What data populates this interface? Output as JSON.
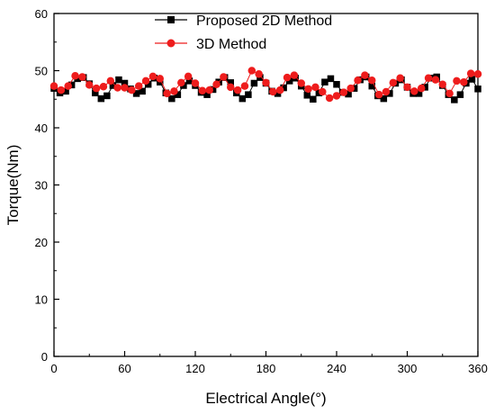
{
  "chart_data": {
    "type": "line",
    "title": "",
    "xlabel": "Electrical Angle(°)",
    "ylabel": "Torque(Nm)",
    "xlim": [
      0,
      360
    ],
    "ylim": [
      0,
      60
    ],
    "xticks": [
      "0",
      "60",
      "120",
      "180",
      "240",
      "300",
      "360"
    ],
    "yticks": [
      "0",
      "10",
      "20",
      "30",
      "40",
      "50",
      "60"
    ],
    "grid": false,
    "legend_position": "top-center",
    "series": [
      {
        "name": "Proposed 2D Method",
        "color": "#000000",
        "marker": "square",
        "x": [
          0,
          5,
          10,
          15,
          20,
          25,
          30,
          35,
          40,
          45,
          50,
          55,
          60,
          65,
          70,
          75,
          80,
          85,
          90,
          95,
          100,
          105,
          110,
          115,
          120,
          125,
          130,
          135,
          140,
          145,
          150,
          155,
          160,
          165,
          170,
          175,
          180,
          185,
          190,
          195,
          200,
          205,
          210,
          215,
          220,
          225,
          230,
          235,
          240,
          245,
          250,
          255,
          260,
          265,
          270,
          275,
          280,
          285,
          290,
          295,
          300,
          305,
          310,
          315,
          320,
          325,
          330,
          335,
          340,
          345,
          350,
          355,
          360
        ],
        "y": [
          46.9,
          46.1,
          46.4,
          47.5,
          48.6,
          48.8,
          47.7,
          46.1,
          45.1,
          45.6,
          47.4,
          48.4,
          47.8,
          46.8,
          46.0,
          46.4,
          47.6,
          48.7,
          48.0,
          46.1,
          45.1,
          45.8,
          47.4,
          48.2,
          47.4,
          46.2,
          45.8,
          46.7,
          48.0,
          48.8,
          47.9,
          46.1,
          45.1,
          45.8,
          47.8,
          48.8,
          47.8,
          46.4,
          46.0,
          47.0,
          48.2,
          48.7,
          47.3,
          45.7,
          45.0,
          46.1,
          48.0,
          48.6,
          47.6,
          46.2,
          45.9,
          46.9,
          48.4,
          48.9,
          47.3,
          45.6,
          45.1,
          46.0,
          47.8,
          48.4,
          47.1,
          46.0,
          46.0,
          47.1,
          48.7,
          48.9,
          47.4,
          45.8,
          44.9,
          45.8,
          47.8,
          48.5,
          46.8
        ]
      },
      {
        "name": "3D Method",
        "color": "#ee1c1c",
        "marker": "circle",
        "x": [
          0,
          6,
          12,
          18,
          24,
          30,
          36,
          42,
          48,
          54,
          60,
          66,
          72,
          78,
          84,
          90,
          96,
          102,
          108,
          114,
          120,
          126,
          132,
          138,
          144,
          150,
          156,
          162,
          168,
          174,
          180,
          186,
          192,
          198,
          204,
          210,
          216,
          222,
          228,
          234,
          240,
          246,
          252,
          258,
          264,
          270,
          276,
          282,
          288,
          294,
          300,
          306,
          312,
          318,
          324,
          330,
          336,
          342,
          348,
          354,
          360
        ],
        "y": [
          47.3,
          46.6,
          47.3,
          49.1,
          48.9,
          47.5,
          46.9,
          47.2,
          48.2,
          47.0,
          47.0,
          46.6,
          47.3,
          48.2,
          49.0,
          48.6,
          46.0,
          46.4,
          47.9,
          49.0,
          47.8,
          46.5,
          46.6,
          47.6,
          48.9,
          47.1,
          46.6,
          47.3,
          50.0,
          49.4,
          47.9,
          46.3,
          46.6,
          48.8,
          49.2,
          47.8,
          46.8,
          47.1,
          46.3,
          45.2,
          45.6,
          46.2,
          46.9,
          48.3,
          49.2,
          48.3,
          45.8,
          46.3,
          47.9,
          48.7,
          47.1,
          46.4,
          46.9,
          48.7,
          48.4,
          47.6,
          46.0,
          48.2,
          48.0,
          49.5,
          49.4
        ]
      }
    ]
  }
}
